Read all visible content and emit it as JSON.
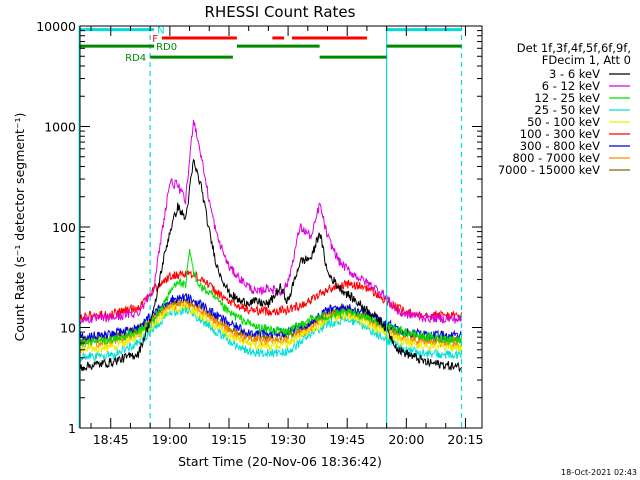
{
  "chart_data": {
    "type": "line",
    "title": "RHESSI Count Rates",
    "xlabel": "Start Time (20-Nov-06 18:36:42)",
    "ylabel": "Count Rate (s⁻¹ detector segment⁻¹)",
    "yscale": "log",
    "ylim": [
      1,
      10000
    ],
    "xlim_minutes": [
      18.62,
      20.32
    ],
    "x_tick_labels": [
      "18:45",
      "19:00",
      "19:15",
      "19:30",
      "19:45",
      "20:00",
      "20:15"
    ],
    "y_tick_labels": [
      "1",
      "10",
      "100",
      "1000",
      "10000"
    ],
    "legend": {
      "header": [
        "Det 1f,3f,4f,5f,6f,9f,",
        "FDecim 1, Att 0"
      ],
      "position": "right"
    },
    "series": [
      {
        "name": "3 - 6 keV",
        "color": "#000000",
        "x": [
          "18:37",
          "18:45",
          "18:52",
          "18:56",
          "18:58",
          "19:00",
          "19:02",
          "19:04",
          "19:06",
          "19:08",
          "19:10",
          "19:12",
          "19:15",
          "19:18",
          "19:22",
          "19:25",
          "19:28",
          "19:30",
          "19:33",
          "19:36",
          "19:38",
          "19:40",
          "19:43",
          "19:46",
          "19:50",
          "19:54",
          "19:58",
          "20:05",
          "20:14"
        ],
        "y": [
          4,
          4.5,
          5.5,
          15,
          40,
          90,
          160,
          120,
          450,
          250,
          90,
          40,
          22,
          18,
          18,
          17,
          25,
          18,
          45,
          50,
          90,
          35,
          25,
          20,
          15,
          11,
          6,
          4.5,
          4
        ]
      },
      {
        "name": "6 - 12 keV",
        "color": "#dd00dd",
        "x": [
          "18:37",
          "18:45",
          "18:52",
          "18:56",
          "18:58",
          "19:00",
          "19:02",
          "19:04",
          "19:06",
          "19:08",
          "19:10",
          "19:12",
          "19:15",
          "19:18",
          "19:22",
          "19:25",
          "19:28",
          "19:30",
          "19:33",
          "19:36",
          "19:38",
          "19:40",
          "19:43",
          "19:46",
          "19:50",
          "19:54",
          "19:58",
          "20:05",
          "20:14"
        ],
        "y": [
          12,
          12.5,
          14,
          25,
          90,
          280,
          260,
          180,
          1200,
          500,
          180,
          80,
          40,
          30,
          22,
          25,
          22,
          28,
          100,
          80,
          170,
          80,
          45,
          35,
          28,
          22,
          14,
          12.5,
          12
        ]
      },
      {
        "name": "12 - 25 keV",
        "color": "#00dd00",
        "x": [
          "18:37",
          "18:45",
          "18:52",
          "18:56",
          "19:00",
          "19:02",
          "19:04",
          "19:05",
          "19:06",
          "19:08",
          "19:10",
          "19:15",
          "19:22",
          "19:30",
          "19:32",
          "19:35",
          "19:40",
          "19:45",
          "19:50",
          "19:55",
          "20:05",
          "20:14"
        ],
        "y": [
          7,
          7.5,
          9,
          12,
          22,
          30,
          25,
          60,
          35,
          25,
          22,
          14,
          10,
          9,
          10,
          12,
          13,
          14,
          13,
          10,
          8,
          7.5
        ]
      },
      {
        "name": "25 - 50 keV",
        "color": "#00dddd",
        "x": [
          "18:37",
          "18:45",
          "18:52",
          "18:56",
          "19:00",
          "19:04",
          "19:08",
          "19:12",
          "19:16",
          "19:20",
          "19:25",
          "19:30",
          "19:35",
          "19:40",
          "19:45",
          "19:50",
          "19:55",
          "20:00",
          "20:05",
          "20:14"
        ],
        "y": [
          5,
          5.3,
          7,
          10,
          14,
          15,
          12,
          9,
          7,
          5.8,
          5.5,
          5.8,
          8,
          11,
          12,
          10,
          7.5,
          6,
          5.5,
          5.2
        ]
      },
      {
        "name": "50 - 100 keV",
        "color": "#eeee00",
        "x": [
          "18:37",
          "18:45",
          "18:52",
          "18:56",
          "19:00",
          "19:04",
          "19:08",
          "19:12",
          "19:16",
          "19:20",
          "19:25",
          "19:30",
          "19:35",
          "19:40",
          "19:45",
          "19:50",
          "19:55",
          "20:00",
          "20:05",
          "20:14"
        ],
        "y": [
          6,
          6.3,
          8,
          11,
          15,
          16,
          13,
          10,
          8,
          6.8,
          6.5,
          6.8,
          9,
          12,
          13,
          11,
          8.5,
          7,
          6.5,
          6.2
        ]
      },
      {
        "name": "100 - 300 keV",
        "color": "#ff0000",
        "x": [
          "18:37",
          "18:45",
          "18:52",
          "18:56",
          "19:00",
          "19:04",
          "19:08",
          "19:12",
          "19:16",
          "19:20",
          "19:25",
          "19:30",
          "19:35",
          "19:40",
          "19:45",
          "19:50",
          "19:55",
          "20:00",
          "20:05",
          "20:14"
        ],
        "y": [
          13,
          13.5,
          16,
          24,
          32,
          35,
          31,
          22,
          17,
          15,
          14.5,
          15,
          18,
          24,
          27,
          25,
          18,
          14,
          13.5,
          13
        ]
      },
      {
        "name": "300 - 800 keV",
        "color": "#0000dd",
        "x": [
          "18:37",
          "18:45",
          "18:52",
          "18:56",
          "19:00",
          "19:04",
          "19:08",
          "19:12",
          "19:16",
          "19:20",
          "19:25",
          "19:30",
          "19:35",
          "19:40",
          "19:45",
          "19:50",
          "19:55",
          "20:00",
          "20:05",
          "20:14"
        ],
        "y": [
          8,
          8.5,
          10,
          14,
          19,
          20,
          17,
          13,
          10.5,
          9,
          8.6,
          9,
          11,
          15,
          16,
          14,
          11,
          9,
          8.5,
          8.2
        ]
      },
      {
        "name": "800 - 7000 keV",
        "color": "#ff8800",
        "x": [
          "18:37",
          "18:45",
          "18:52",
          "18:56",
          "19:00",
          "19:04",
          "19:08",
          "19:12",
          "19:16",
          "19:20",
          "19:25",
          "19:30",
          "19:35",
          "19:40",
          "19:45",
          "19:50",
          "19:55",
          "20:00",
          "20:05",
          "20:14"
        ],
        "y": [
          6.8,
          7.1,
          8.8,
          12,
          16,
          17,
          14.5,
          11,
          8.8,
          7.5,
          7.2,
          7.5,
          9.5,
          13,
          14,
          12,
          9.5,
          7.6,
          7.1,
          6.9
        ]
      },
      {
        "name": "7000 - 15000 keV",
        "color": "#886600",
        "x": [
          "18:37",
          "18:45",
          "18:52",
          "18:56",
          "19:00",
          "19:04",
          "19:08",
          "19:12",
          "19:16",
          "19:20",
          "19:25",
          "19:30",
          "19:35",
          "19:40",
          "19:45",
          "19:50",
          "19:55",
          "20:00",
          "20:05",
          "20:14"
        ],
        "y": [
          7.5,
          7.8,
          9.5,
          13,
          17,
          18,
          15.5,
          12,
          9.5,
          8.2,
          7.9,
          8.2,
          10.2,
          14,
          15,
          13,
          10.2,
          8.3,
          7.8,
          7.6
        ]
      }
    ],
    "vertical_lines": [
      {
        "x": "18:37",
        "style": "solid",
        "color": "#00dddd"
      },
      {
        "x": "18:55",
        "style": "dashed",
        "color": "#00dddd"
      },
      {
        "x": "19:55",
        "style": "solid",
        "color": "#00dddd"
      },
      {
        "x": "20:14",
        "style": "dashed",
        "color": "#00dddd"
      }
    ],
    "flag_bars": [
      {
        "label": "N",
        "label_color": "#00dddd",
        "color": "#00dddd",
        "y": 9200,
        "segments": [
          [
            "18:37",
            "18:56"
          ],
          [
            "19:55",
            "20:14"
          ]
        ]
      },
      {
        "label": "F",
        "label_color": "#ff0000",
        "color": "#ff0000",
        "y": 7600,
        "segments": [
          [
            "18:58",
            "19:17"
          ],
          [
            "19:26",
            "19:29"
          ],
          [
            "19:31",
            "19:50"
          ]
        ]
      },
      {
        "label": "RD0",
        "label_color": "#008800",
        "color": "#008800",
        "y": 6300,
        "segments": [
          [
            "18:37",
            "18:56"
          ],
          [
            "19:17",
            "19:38"
          ],
          [
            "19:55",
            "20:14"
          ]
        ]
      },
      {
        "label": "RD4",
        "label_color": "#008800",
        "color": "#008800",
        "y": 4900,
        "segments": [
          [
            "18:55",
            "19:16"
          ],
          [
            "19:38",
            "19:55"
          ]
        ]
      }
    ],
    "footer": "18-Oct-2021 02:43"
  }
}
